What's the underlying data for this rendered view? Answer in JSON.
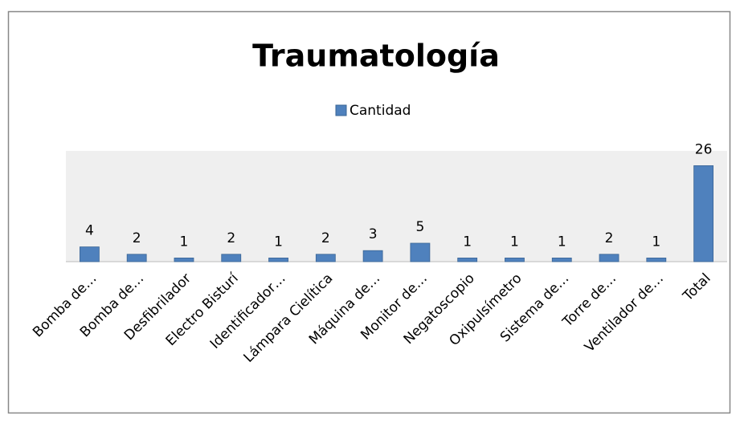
{
  "chart_data": {
    "type": "bar",
    "title": "Traumatología",
    "categories": [
      "Bomba de…",
      "Bomba de…",
      "Desfibrilador",
      "Electro Bisturí",
      "Identificador…",
      "Lámpara Cielítica",
      "Máquina de…",
      "Monitor de…",
      "Negatoscopio",
      "Oxipulsímetro",
      "Sistema de…",
      "Torre de…",
      "Ventilador de…",
      "Total"
    ],
    "series": [
      {
        "name": "Cantidad",
        "color": "#4f81bd",
        "values": [
          4,
          2,
          1,
          2,
          1,
          2,
          3,
          5,
          1,
          1,
          1,
          2,
          1,
          26
        ]
      }
    ],
    "ylim": [
      0,
      30
    ],
    "legend": "top"
  }
}
